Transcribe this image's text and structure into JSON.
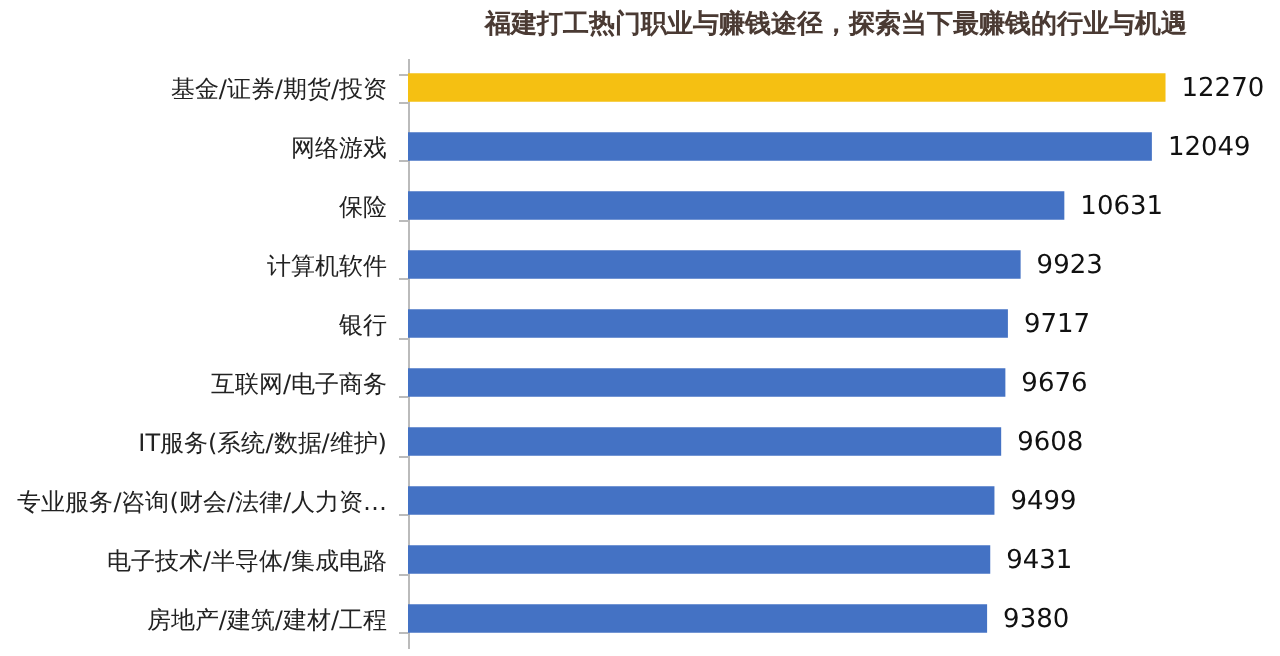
{
  "chart_data": {
    "type": "bar",
    "orientation": "horizontal",
    "title": "福建打工热门职业与赚钱途径，探索当下最赚钱的行业与机遇",
    "categories": [
      "基金/证券/期货/投资",
      "网络游戏",
      "保险",
      "计算机软件",
      "银行",
      "互联网/电子商务",
      "IT服务(系统/数据/维护)",
      "专业服务/咨询(财会/法律/人力资…",
      "电子技术/半导体/集成电路",
      "房地产/建筑/建材/工程"
    ],
    "values": [
      12270,
      12049,
      10631,
      9923,
      9717,
      9676,
      9608,
      9499,
      9431,
      9380
    ],
    "colors": [
      "#f5c012",
      "#4472c4",
      "#4472c4",
      "#4472c4",
      "#4472c4",
      "#4472c4",
      "#4472c4",
      "#4472c4",
      "#4472c4",
      "#4472c4"
    ],
    "data_labels": true
  }
}
